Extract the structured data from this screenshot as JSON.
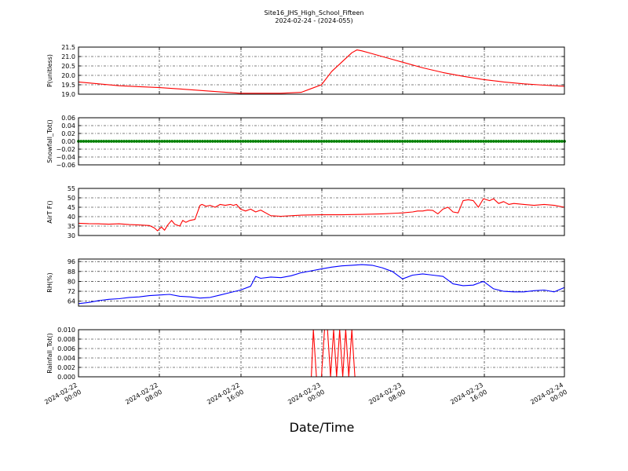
{
  "figure": {
    "title": "Site16_JHS_High_School_Fifteen",
    "subtitle": "2024-02-24 - (2024-055)",
    "xlabel": "Date/Time"
  },
  "chart_data": [
    {
      "type": "line",
      "ylabel": "P(unitless)",
      "ylim": [
        19.0,
        21.5
      ],
      "yticks": [
        "21.5",
        "21.0",
        "20.5",
        "20.0",
        "19.5",
        "19.0"
      ],
      "xlim_hours": [
        0,
        48
      ],
      "xticks": [
        "2024-02-22 00:00",
        "2024-02-22 08:00",
        "2024-02-22 16:00",
        "2024-02-23 00:00",
        "2024-02-23 08:00",
        "2024-02-23 16:00",
        "2024-02-24 00:00"
      ],
      "grid": true,
      "color": "#ff0000",
      "series": [
        {
          "x": [
            0,
            2,
            4,
            6,
            8,
            10,
            12,
            14,
            16,
            18,
            20,
            22,
            23,
            24,
            25,
            26,
            27,
            27.5,
            28,
            29,
            30,
            32,
            34,
            36,
            38,
            40,
            42,
            44,
            46,
            48
          ],
          "y": [
            19.65,
            19.55,
            19.45,
            19.4,
            19.35,
            19.28,
            19.2,
            19.12,
            19.05,
            19.05,
            19.05,
            19.1,
            19.3,
            19.5,
            20.2,
            20.7,
            21.2,
            21.35,
            21.3,
            21.15,
            21.0,
            20.7,
            20.4,
            20.15,
            19.95,
            19.78,
            19.65,
            19.55,
            19.48,
            19.42
          ]
        }
      ]
    },
    {
      "type": "scatter",
      "ylabel": "Snowfall_Tot()",
      "ylim": [
        -0.06,
        0.06
      ],
      "yticks": [
        "0.06",
        "0.04",
        "0.02",
        "0.00",
        "−0.02",
        "−0.04",
        "−0.06"
      ],
      "xlim_hours": [
        0,
        48
      ],
      "grid": true,
      "color": "#008000",
      "series": [
        {
          "x_start": 0,
          "x_end": 48,
          "x_step": 0.25,
          "y": 0.0
        }
      ]
    },
    {
      "type": "line",
      "ylabel": "AirT F()",
      "ylim": [
        30,
        55
      ],
      "yticks": [
        "55",
        "50",
        "45",
        "40",
        "35",
        "30"
      ],
      "xlim_hours": [
        0,
        48
      ],
      "grid": true,
      "color": "#ff0000",
      "series": [
        {
          "x": [
            0,
            1,
            2,
            3,
            4,
            5,
            6,
            7,
            7.5,
            7.8,
            8.2,
            8.5,
            8.8,
            9.2,
            9.5,
            10,
            10.3,
            10.6,
            11,
            11.5,
            12,
            12.2,
            12.6,
            13,
            13.5,
            14,
            14.5,
            15,
            15.3,
            15.6,
            16,
            16.5,
            17,
            17.5,
            18,
            19,
            20,
            22,
            24,
            26,
            28,
            30,
            32,
            33,
            33.5,
            34,
            34.5,
            35,
            35.5,
            36,
            36.5,
            37,
            37.5,
            38,
            38.5,
            39,
            39.5,
            40,
            40.3,
            40.6,
            41,
            41.5,
            42,
            42.5,
            43,
            44,
            45,
            46,
            47,
            48
          ],
          "y": [
            36.5,
            36.3,
            36.2,
            36.0,
            36.2,
            35.8,
            35.6,
            35.3,
            34.0,
            32.5,
            34.5,
            32.8,
            35.5,
            38.0,
            36.0,
            35.0,
            38.0,
            37.0,
            38.0,
            38.5,
            46.0,
            46.5,
            45.5,
            46.0,
            45.0,
            46.5,
            46.0,
            46.5,
            46.0,
            46.5,
            44.0,
            43.0,
            44.0,
            42.5,
            43.5,
            40.5,
            40.2,
            40.8,
            41.0,
            41.0,
            41.2,
            41.5,
            42.0,
            42.5,
            43.0,
            43.0,
            43.5,
            43.3,
            41.5,
            44.0,
            45.0,
            42.5,
            42.0,
            48.5,
            49.0,
            48.5,
            45.0,
            49.5,
            49.0,
            48.5,
            49.5,
            47.0,
            48.0,
            46.5,
            47.0,
            46.5,
            46.0,
            46.5,
            46.0,
            45.0
          ]
        }
      ]
    },
    {
      "type": "line",
      "ylabel": "RH(%)",
      "ylim": [
        60,
        98
      ],
      "yticks": [
        "96",
        "88",
        "80",
        "72",
        "64"
      ],
      "xlim_hours": [
        0,
        48
      ],
      "grid": true,
      "color": "#0000ff",
      "series": [
        {
          "x": [
            0,
            1,
            2,
            3,
            4,
            5,
            6,
            7,
            8,
            9,
            10,
            11,
            12,
            13,
            14,
            15,
            16,
            17,
            17.5,
            18,
            19,
            20,
            21,
            22,
            23,
            24,
            25,
            26,
            27,
            28,
            29,
            30,
            31,
            32,
            33,
            34,
            35,
            36,
            37,
            38,
            39,
            40,
            40.5,
            41,
            42,
            43,
            44,
            45,
            46,
            47,
            48
          ],
          "y": [
            62.0,
            63.0,
            64.5,
            65.5,
            66.0,
            67.0,
            67.5,
            68.5,
            69.0,
            69.5,
            68.0,
            67.5,
            66.5,
            67.0,
            69.0,
            71.0,
            73.0,
            76.0,
            84.0,
            82.5,
            83.5,
            83.0,
            84.5,
            87.0,
            88.5,
            90.0,
            91.5,
            92.5,
            93.0,
            93.5,
            93.0,
            91.0,
            88.0,
            82.0,
            85.0,
            86.0,
            85.0,
            84.0,
            78.0,
            76.5,
            77.0,
            80.0,
            77.0,
            74.0,
            72.0,
            71.5,
            71.5,
            72.5,
            73.0,
            71.5,
            75.0
          ]
        }
      ]
    },
    {
      "type": "line",
      "ylabel": "Rainfall_Tot()",
      "ylim": [
        0.0,
        0.01
      ],
      "yticks": [
        "0.010",
        "0.008",
        "0.006",
        "0.004",
        "0.002",
        "0.000"
      ],
      "xlim_hours": [
        0,
        48
      ],
      "grid": true,
      "color": "#ff0000",
      "series": [
        {
          "x": [
            0,
            23.0,
            23.2,
            23.5,
            24.0,
            24.3,
            24.6,
            24.9,
            25.2,
            25.5,
            25.8,
            26.1,
            26.4,
            26.7,
            27.0,
            27.3,
            27.6,
            48
          ],
          "y": [
            0,
            0,
            0.01,
            0,
            0,
            0.01,
            0.01,
            0,
            0.01,
            0,
            0.01,
            0,
            0.01,
            0,
            0.01,
            0,
            0,
            0
          ]
        }
      ]
    }
  ]
}
